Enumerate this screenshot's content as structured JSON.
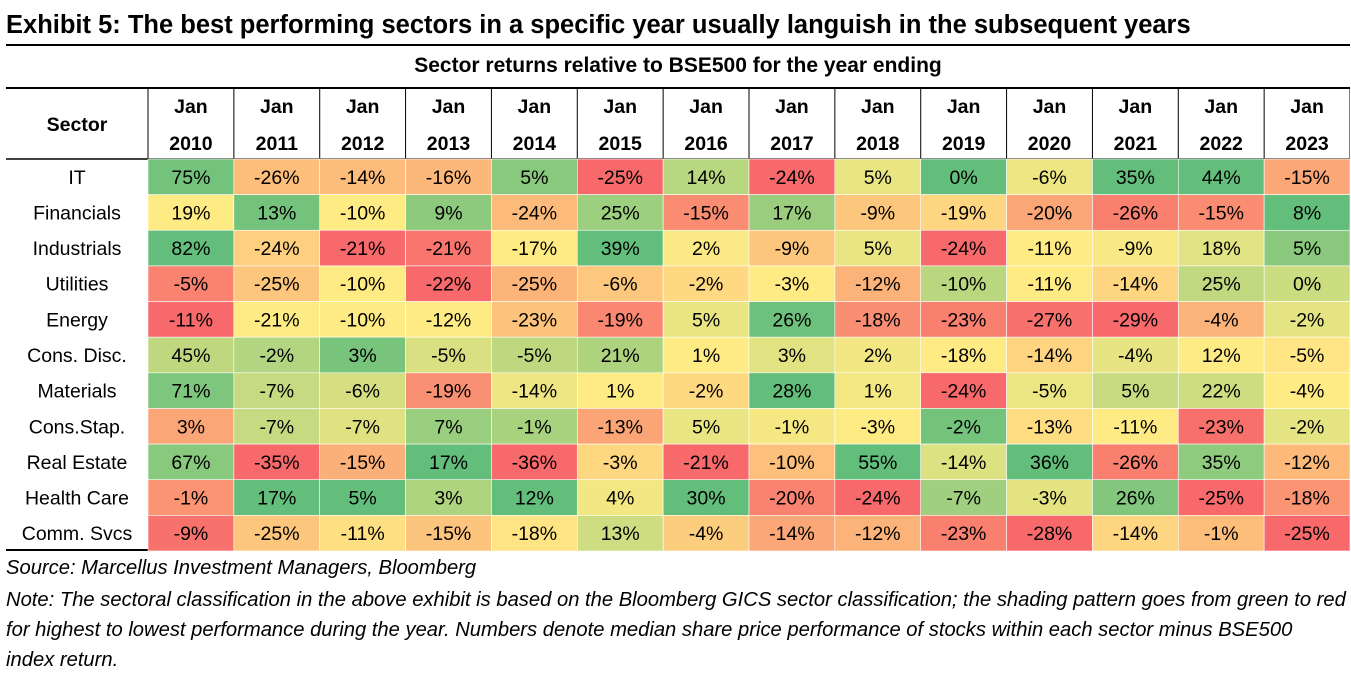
{
  "title": "Exhibit 5: The best performing sectors in a specific year usually languish in the subsequent years",
  "subtitle": "Sector returns relative to BSE500 for the year ending",
  "source": "Source: Marcellus Investment Managers, Bloomberg",
  "note": "Note: The sectoral classification in the above exhibit is based on the Bloomberg GICS sector classification; the shading pattern goes from green to red for highest to lowest performance during the year. Numbers denote median share price performance of stocks within each sector minus BSE500 index return.",
  "chart_data": {
    "type": "heatmap",
    "row_header": "Sector",
    "column_prefix": "Jan",
    "years": [
      "2010",
      "2011",
      "2012",
      "2013",
      "2014",
      "2015",
      "2016",
      "2017",
      "2018",
      "2019",
      "2020",
      "2021",
      "2022",
      "2023"
    ],
    "rows": [
      "IT",
      "Financials",
      "Industrials",
      "Utilities",
      "Energy",
      "Cons. Disc.",
      "Materials",
      "Cons.Stap.",
      "Real Estate",
      "Health Care",
      "Comm. Svcs"
    ],
    "values": [
      [
        75,
        -26,
        -14,
        -16,
        5,
        -25,
        14,
        -24,
        5,
        0,
        -6,
        35,
        44,
        -15
      ],
      [
        19,
        13,
        -10,
        9,
        -24,
        25,
        -15,
        17,
        -9,
        -19,
        -20,
        -26,
        -15,
        8
      ],
      [
        82,
        -24,
        -21,
        -21,
        -17,
        39,
        2,
        -9,
        5,
        -24,
        -11,
        -9,
        18,
        5
      ],
      [
        -5,
        -25,
        -10,
        -22,
        -25,
        -6,
        -2,
        -3,
        -12,
        -10,
        -11,
        -14,
        25,
        0
      ],
      [
        -11,
        -21,
        -10,
        -12,
        -23,
        -19,
        5,
        26,
        -18,
        -23,
        -27,
        -29,
        -4,
        -2
      ],
      [
        45,
        -2,
        3,
        -5,
        -5,
        21,
        1,
        3,
        2,
        -18,
        -14,
        -4,
        12,
        -5
      ],
      [
        71,
        -7,
        -6,
        -19,
        -14,
        1,
        -2,
        28,
        1,
        -24,
        -5,
        5,
        22,
        -4
      ],
      [
        3,
        -7,
        -7,
        7,
        -1,
        -13,
        5,
        -1,
        -3,
        -2,
        -13,
        -11,
        -23,
        -2
      ],
      [
        67,
        -35,
        -15,
        17,
        -36,
        -3,
        -21,
        -10,
        55,
        -14,
        36,
        -26,
        35,
        -12
      ],
      [
        -1,
        17,
        5,
        3,
        12,
        4,
        30,
        -20,
        -24,
        -7,
        -3,
        26,
        -25,
        -18
      ],
      [
        -9,
        -25,
        -11,
        -15,
        -18,
        13,
        -4,
        -14,
        -12,
        -23,
        -28,
        -14,
        -1,
        -25
      ]
    ],
    "value_suffix": "%",
    "color_scale": {
      "low": "#f8696b",
      "mid": "#ffeb84",
      "high": "#63be7b",
      "direction": "per column, green = highest, red = lowest"
    }
  }
}
